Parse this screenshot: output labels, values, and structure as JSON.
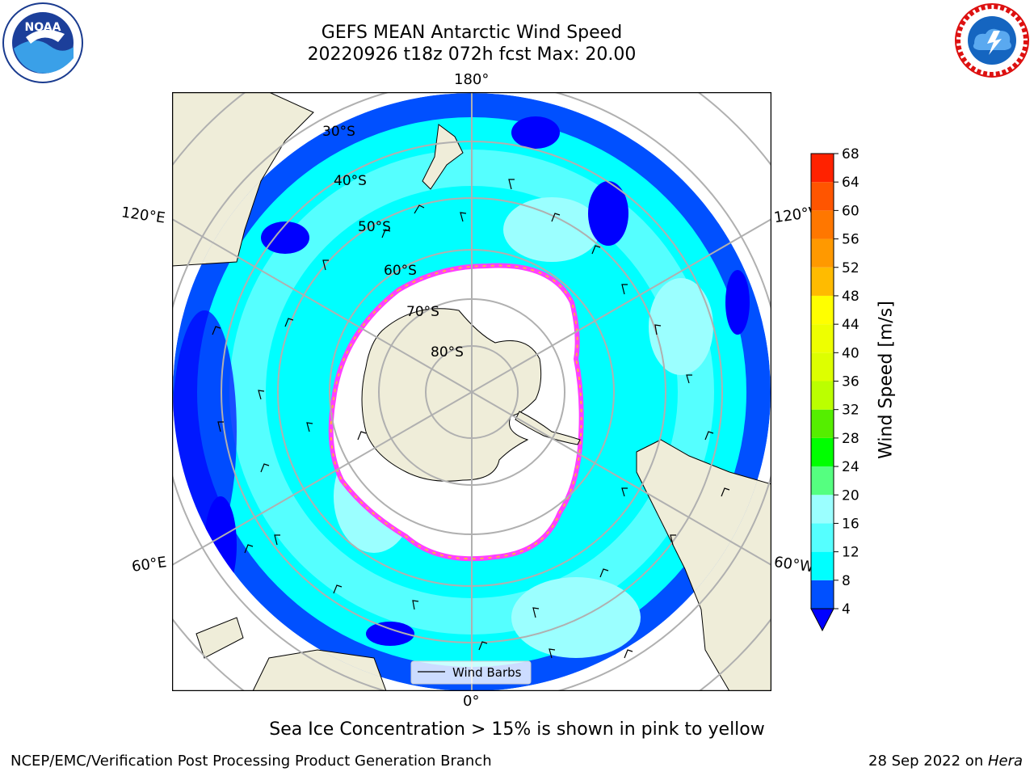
{
  "title": {
    "line1": "GEFS MEAN Antarctic Wind Speed",
    "line2": "20220926 t18z 072h fcst   Max: 20.00"
  },
  "logos": {
    "left": {
      "icon": "noaa-logo-icon",
      "text": "NOAA"
    },
    "right": {
      "icon": "nws-logo-icon"
    }
  },
  "map": {
    "projection": "south-polar-stereographic",
    "longitude_labels": [
      "180°",
      "120°E",
      "120°W",
      "60°E",
      "60°W",
      "0°"
    ],
    "latitude_labels": [
      "30°S",
      "40°S",
      "50°S",
      "60°S",
      "70°S",
      "80°S"
    ],
    "legend": {
      "label": "Wind Barbs",
      "placement": "lower-center"
    },
    "colors": {
      "land": "#efedd9",
      "ocean_low": "#0050ff",
      "ocean_mid": "#00ffff",
      "ocean_high": "#9bffff",
      "ice_edge": "#ff40ff",
      "ice_inner": "#ffb040"
    }
  },
  "chart_data": {
    "type": "heatmap",
    "colorbar": {
      "label": "Wind Speed [m/s]",
      "ticks": [
        4,
        8,
        12,
        16,
        20,
        24,
        28,
        32,
        36,
        40,
        44,
        48,
        52,
        56,
        60,
        64,
        68
      ],
      "range": [
        4,
        68
      ],
      "extend": "min",
      "colors": [
        "#0050ff",
        "#00ffff",
        "#55ffff",
        "#9bffff",
        "#55ff80",
        "#00ff00",
        "#55ee00",
        "#bbff00",
        "#ddff00",
        "#eeff00",
        "#ffff00",
        "#ffbb00",
        "#ff9900",
        "#ff7700",
        "#ff5500",
        "#ff2200"
      ],
      "under_color": "#0000ff"
    }
  },
  "caption": "Sea Ice Concentration > 15% is shown in pink to yellow",
  "footer": {
    "left": "NCEP/EMC/Verification Post Processing Product Generation Branch",
    "right_prefix": "28 Sep 2022 on ",
    "right_host": "Hera"
  }
}
